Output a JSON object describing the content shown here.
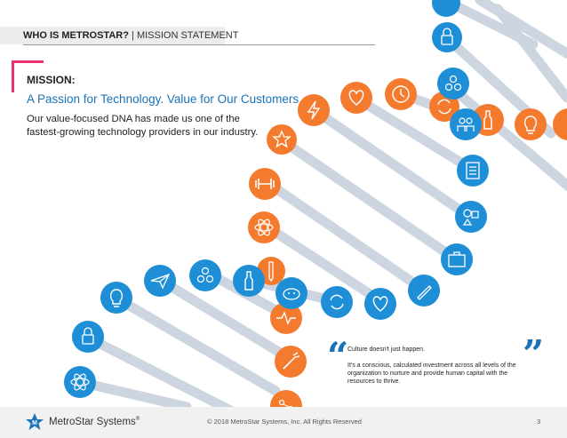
{
  "header": {
    "bold": "WHO IS METROSTAR?",
    "separator": " | ",
    "section": "MISSION STATEMENT"
  },
  "mission": {
    "label": "MISSION:",
    "headline": "A Passion for Technology. Value for Our Customers.",
    "body": "Our value-focused DNA has made us one of the fastest-growing technology providers in our industry."
  },
  "quote": {
    "open": "“",
    "close": "”",
    "line1": "Culture doesn't just happen.",
    "line2": "It's a conscious, calculated investment across all levels of the organization to nurture and provide human capital with the resources to thrive."
  },
  "footer": {
    "brand": "MetroStar Systems",
    "brand_mark": "®",
    "copyright": "© 2018 MetroStar Systems, Inc. All Rights Reserved",
    "page_number": "3"
  },
  "colors": {
    "accent": "#e8316f",
    "blue": "#1a73b8",
    "icon_orange": "#f47a2e",
    "icon_blue": "#1e8fd6",
    "dna_gray": "#b8c4d4"
  },
  "dna_icons": [
    {
      "name": "star-icon",
      "color": "orange"
    },
    {
      "name": "bolt-icon",
      "color": "orange"
    },
    {
      "name": "heart-icon",
      "color": "orange"
    },
    {
      "name": "clock-icon",
      "color": "orange"
    },
    {
      "name": "refresh-icon",
      "color": "orange"
    },
    {
      "name": "bottle-icon",
      "color": "orange"
    },
    {
      "name": "lightbulb-icon",
      "color": "orange"
    },
    {
      "name": "dumbbell-icon",
      "color": "orange"
    },
    {
      "name": "atom-icon",
      "color": "orange"
    },
    {
      "name": "pencil-icon",
      "color": "orange"
    },
    {
      "name": "piggy-bank-icon",
      "color": "orange"
    },
    {
      "name": "heartbeat-icon",
      "color": "orange"
    },
    {
      "name": "carrot-icon",
      "color": "orange"
    },
    {
      "name": "network-icon",
      "color": "orange"
    },
    {
      "name": "padlock-icon",
      "color": "blue"
    },
    {
      "name": "cluster-icon",
      "color": "blue"
    },
    {
      "name": "team-icon",
      "color": "blue"
    },
    {
      "name": "checklist-icon",
      "color": "blue"
    },
    {
      "name": "shapes-icon",
      "color": "blue"
    },
    {
      "name": "briefcase-icon",
      "color": "blue"
    },
    {
      "name": "pencil-icon",
      "color": "blue"
    },
    {
      "name": "heart-icon",
      "color": "blue"
    },
    {
      "name": "refresh-icon",
      "color": "blue"
    },
    {
      "name": "piggy-bank-icon",
      "color": "blue"
    },
    {
      "name": "bottle-icon",
      "color": "blue"
    },
    {
      "name": "cluster-icon",
      "color": "blue"
    },
    {
      "name": "paper-plane-icon",
      "color": "blue"
    },
    {
      "name": "lightbulb-icon",
      "color": "blue"
    },
    {
      "name": "padlock-icon",
      "color": "blue"
    },
    {
      "name": "atom-icon",
      "color": "blue"
    }
  ]
}
